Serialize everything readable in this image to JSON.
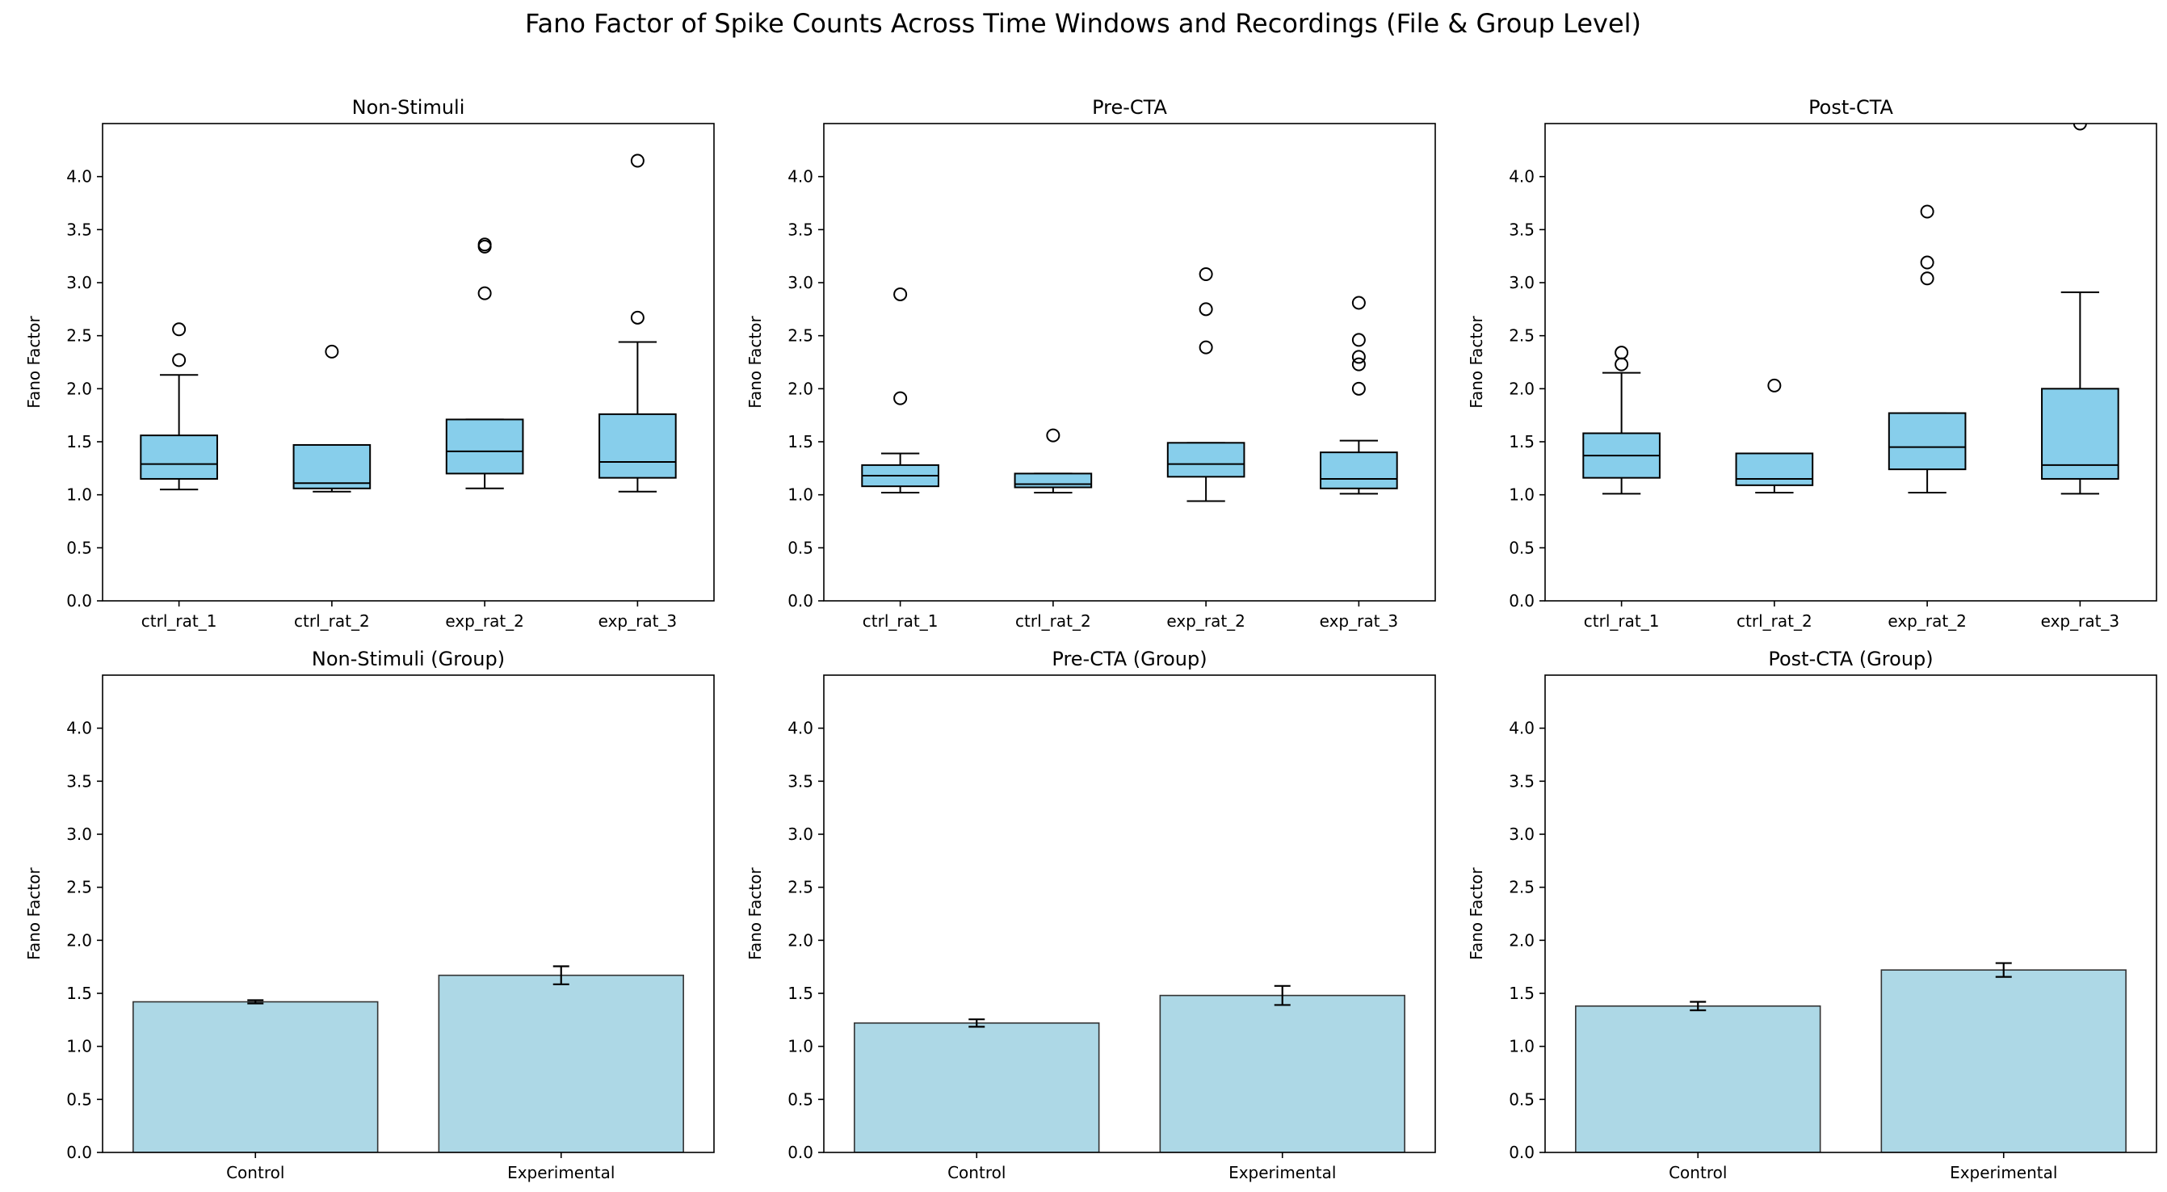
{
  "figure": {
    "suptitle": "Fano Factor of Spike Counts Across Time Windows and Recordings (File & Group Level)"
  },
  "style": {
    "box_fill": "#87ceeb",
    "bar_fill": "#add8e6",
    "edge": "#000000"
  },
  "chart_data": [
    {
      "type": "box",
      "title": "Non-Stimuli",
      "ylabel": "Fano Factor",
      "ylim": [
        0,
        4.5
      ],
      "yticks": [
        "0.0",
        "0.5",
        "1.0",
        "1.5",
        "2.0",
        "2.5",
        "3.0",
        "3.5",
        "4.0"
      ],
      "categories": [
        "ctrl_rat_1",
        "ctrl_rat_2",
        "exp_rat_2",
        "exp_rat_3"
      ],
      "boxes": [
        {
          "whislo": 1.05,
          "q1": 1.15,
          "med": 1.29,
          "q3": 1.56,
          "whishi": 2.13,
          "fliers": [
            2.27,
            2.56
          ]
        },
        {
          "whislo": 1.03,
          "q1": 1.06,
          "med": 1.11,
          "q3": 1.47,
          "whishi": 1.47,
          "fliers": [
            2.35
          ]
        },
        {
          "whislo": 1.06,
          "q1": 1.2,
          "med": 1.41,
          "q3": 1.71,
          "whishi": 1.71,
          "fliers": [
            2.9,
            3.34,
            3.36
          ]
        },
        {
          "whislo": 1.03,
          "q1": 1.16,
          "med": 1.31,
          "q3": 1.76,
          "whishi": 2.44,
          "fliers": [
            2.67,
            4.15
          ]
        }
      ]
    },
    {
      "type": "box",
      "title": "Pre-CTA",
      "ylabel": "Fano Factor",
      "ylim": [
        0,
        4.5
      ],
      "yticks": [
        "0.0",
        "0.5",
        "1.0",
        "1.5",
        "2.0",
        "2.5",
        "3.0",
        "3.5",
        "4.0"
      ],
      "categories": [
        "ctrl_rat_1",
        "ctrl_rat_2",
        "exp_rat_2",
        "exp_rat_3"
      ],
      "boxes": [
        {
          "whislo": 1.02,
          "q1": 1.08,
          "med": 1.18,
          "q3": 1.28,
          "whishi": 1.39,
          "fliers": [
            1.91,
            2.89
          ]
        },
        {
          "whislo": 1.02,
          "q1": 1.07,
          "med": 1.1,
          "q3": 1.2,
          "whishi": 1.2,
          "fliers": [
            1.56
          ]
        },
        {
          "whislo": 0.94,
          "q1": 1.17,
          "med": 1.29,
          "q3": 1.49,
          "whishi": 1.49,
          "fliers": [
            2.39,
            2.75,
            3.08
          ]
        },
        {
          "whislo": 1.01,
          "q1": 1.06,
          "med": 1.15,
          "q3": 1.4,
          "whishi": 1.51,
          "fliers": [
            2.0,
            2.23,
            2.3,
            2.46,
            2.81
          ]
        }
      ]
    },
    {
      "type": "box",
      "title": "Post-CTA",
      "ylabel": "Fano Factor",
      "ylim": [
        0,
        4.5
      ],
      "yticks": [
        "0.0",
        "0.5",
        "1.0",
        "1.5",
        "2.0",
        "2.5",
        "3.0",
        "3.5",
        "4.0"
      ],
      "categories": [
        "ctrl_rat_1",
        "ctrl_rat_2",
        "exp_rat_2",
        "exp_rat_3"
      ],
      "boxes": [
        {
          "whislo": 1.01,
          "q1": 1.16,
          "med": 1.37,
          "q3": 1.58,
          "whishi": 2.15,
          "fliers": [
            2.23,
            2.34
          ]
        },
        {
          "whislo": 1.02,
          "q1": 1.09,
          "med": 1.15,
          "q3": 1.39,
          "whishi": 1.39,
          "fliers": [
            2.03
          ]
        },
        {
          "whislo": 1.02,
          "q1": 1.24,
          "med": 1.45,
          "q3": 1.77,
          "whishi": 1.77,
          "fliers": [
            3.04,
            3.19,
            3.67
          ]
        },
        {
          "whislo": 1.01,
          "q1": 1.15,
          "med": 1.28,
          "q3": 2.0,
          "whishi": 2.91,
          "fliers": [
            4.5
          ]
        }
      ]
    },
    {
      "type": "bar",
      "title": "Non-Stimuli (Group)",
      "ylabel": "Fano Factor",
      "ylim": [
        0,
        4.5
      ],
      "yticks": [
        "0.0",
        "0.5",
        "1.0",
        "1.5",
        "2.0",
        "2.5",
        "3.0",
        "3.5",
        "4.0"
      ],
      "categories": [
        "Control",
        "Experimental"
      ],
      "values": [
        1.42,
        1.67
      ],
      "errors": [
        0.015,
        0.085
      ]
    },
    {
      "type": "bar",
      "title": "Pre-CTA (Group)",
      "ylabel": "Fano Factor",
      "ylim": [
        0,
        4.5
      ],
      "yticks": [
        "0.0",
        "0.5",
        "1.0",
        "1.5",
        "2.0",
        "2.5",
        "3.0",
        "3.5",
        "4.0"
      ],
      "categories": [
        "Control",
        "Experimental"
      ],
      "values": [
        1.22,
        1.48
      ],
      "errors": [
        0.035,
        0.09
      ]
    },
    {
      "type": "bar",
      "title": "Post-CTA (Group)",
      "ylabel": "Fano Factor",
      "ylim": [
        0,
        4.5
      ],
      "yticks": [
        "0.0",
        "0.5",
        "1.0",
        "1.5",
        "2.0",
        "2.5",
        "3.0",
        "3.5",
        "4.0"
      ],
      "categories": [
        "Control",
        "Experimental"
      ],
      "values": [
        1.38,
        1.72
      ],
      "errors": [
        0.04,
        0.065
      ]
    }
  ]
}
